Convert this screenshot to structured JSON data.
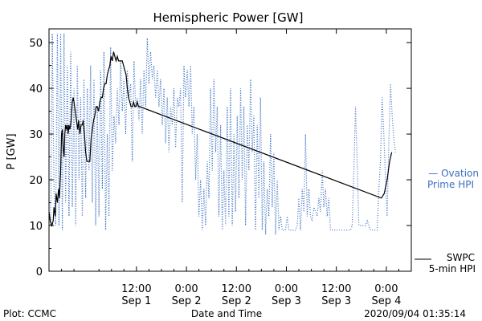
{
  "chart_data": {
    "type": "line",
    "title": "Hemispheric Power [GW]",
    "ylabel": "P [GW]",
    "xlabel": "Date and Time",
    "ylim": [
      0,
      53
    ],
    "yticks": [
      0,
      10,
      20,
      30,
      40,
      50
    ],
    "xrange_hours": [
      -9,
      78
    ],
    "xticks": [
      {
        "t": 12,
        "time": "12:00",
        "date": "Sep 1"
      },
      {
        "t": 24,
        "time": "0:00",
        "date": "Sep 2"
      },
      {
        "t": 36,
        "time": "12:00",
        "date": "Sep 2"
      },
      {
        "t": 48,
        "time": "0:00",
        "date": "Sep 3"
      },
      {
        "t": 60,
        "time": "12:00",
        "date": "Sep 3"
      },
      {
        "t": 72,
        "time": "0:00",
        "date": "Sep 4"
      }
    ],
    "footer_left": "Plot: CCMC",
    "footer_right": "2020/09/04 01:35:14",
    "series": [
      {
        "legend": [
          "— Ovation",
          "Prime HPI"
        ],
        "color": "#3a6fc0",
        "style": "dotted",
        "points": [
          [
            -9,
            13
          ],
          [
            -8.6,
            10
          ],
          [
            -8.2,
            52
          ],
          [
            -7.8,
            18
          ],
          [
            -7.4,
            10
          ],
          [
            -7,
            52
          ],
          [
            -6.6,
            10
          ],
          [
            -6.2,
            52
          ],
          [
            -5.8,
            9
          ],
          [
            -5.4,
            52
          ],
          [
            -5,
            15
          ],
          [
            -4.6,
            45
          ],
          [
            -4.2,
            12
          ],
          [
            -3.8,
            48
          ],
          [
            -3.4,
            14
          ],
          [
            -3,
            40
          ],
          [
            -2.6,
            10
          ],
          [
            -2.2,
            45
          ],
          [
            -1.8,
            20
          ],
          [
            -1.4,
            38
          ],
          [
            -1,
            12
          ],
          [
            -0.6,
            42
          ],
          [
            -0.2,
            16
          ],
          [
            0.2,
            40
          ],
          [
            0.6,
            22
          ],
          [
            1,
            45
          ],
          [
            1.4,
            15
          ],
          [
            1.8,
            42
          ],
          [
            2.2,
            10
          ],
          [
            2.6,
            36
          ],
          [
            3,
            12
          ],
          [
            3.4,
            44
          ],
          [
            3.8,
            18
          ],
          [
            4.2,
            48
          ],
          [
            4.6,
            9
          ],
          [
            5,
            30
          ],
          [
            5.4,
            12
          ],
          [
            5.8,
            49
          ],
          [
            6.2,
            22
          ],
          [
            6.6,
            34
          ],
          [
            7,
            28
          ],
          [
            7.4,
            40
          ],
          [
            7.8,
            32
          ],
          [
            8.2,
            46
          ],
          [
            8.6,
            35
          ],
          [
            9,
            42
          ],
          [
            9.4,
            30
          ],
          [
            9.8,
            44
          ],
          [
            10.2,
            38
          ],
          [
            10.6,
            41
          ],
          [
            11,
            24
          ],
          [
            11.4,
            46
          ],
          [
            11.8,
            36
          ],
          [
            12.2,
            38
          ],
          [
            12.6,
            33
          ],
          [
            13,
            42
          ],
          [
            13.4,
            30
          ],
          [
            13.8,
            44
          ],
          [
            14.2,
            36
          ],
          [
            14.6,
            51
          ],
          [
            15,
            41
          ],
          [
            15.4,
            48
          ],
          [
            15.8,
            42
          ],
          [
            16.2,
            45
          ],
          [
            16.6,
            38
          ],
          [
            17,
            44
          ],
          [
            17.4,
            36
          ],
          [
            17.8,
            42
          ],
          [
            18.2,
            32
          ],
          [
            18.6,
            40
          ],
          [
            19,
            28
          ],
          [
            19.4,
            38
          ],
          [
            19.8,
            26
          ],
          [
            20.2,
            36
          ],
          [
            20.6,
            32
          ],
          [
            21,
            40
          ],
          [
            21.4,
            27
          ],
          [
            21.8,
            38
          ],
          [
            22.2,
            36
          ],
          [
            22.6,
            40
          ],
          [
            23,
            15
          ],
          [
            23.4,
            45
          ],
          [
            23.8,
            38
          ],
          [
            24.2,
            44
          ],
          [
            24.6,
            36
          ],
          [
            25,
            45
          ],
          [
            25.4,
            30
          ],
          [
            25.8,
            36
          ],
          [
            26.2,
            20
          ],
          [
            26.6,
            30
          ],
          [
            27,
            12
          ],
          [
            27.4,
            20
          ],
          [
            27.8,
            9
          ],
          [
            28.2,
            18
          ],
          [
            28.6,
            10
          ],
          [
            29,
            24
          ],
          [
            29.4,
            16
          ],
          [
            29.8,
            40
          ],
          [
            30.2,
            22
          ],
          [
            30.6,
            42
          ],
          [
            31,
            26
          ],
          [
            31.4,
            36
          ],
          [
            31.8,
            12
          ],
          [
            32.2,
            32
          ],
          [
            32.6,
            9
          ],
          [
            33,
            22
          ],
          [
            33.4,
            10
          ],
          [
            33.8,
            36
          ],
          [
            34.2,
            12
          ],
          [
            34.6,
            40
          ],
          [
            35,
            10
          ],
          [
            35.4,
            30
          ],
          [
            35.8,
            13
          ],
          [
            36.2,
            34
          ],
          [
            36.6,
            16
          ],
          [
            37,
            40
          ],
          [
            37.4,
            20
          ],
          [
            37.8,
            36
          ],
          [
            38.2,
            10
          ],
          [
            38.6,
            32
          ],
          [
            39,
            22
          ],
          [
            39.4,
            42
          ],
          [
            39.8,
            26
          ],
          [
            40.2,
            34
          ],
          [
            40.6,
            9
          ],
          [
            41,
            32
          ],
          [
            41.4,
            16
          ],
          [
            41.8,
            38
          ],
          [
            42.2,
            9
          ],
          [
            42.6,
            24
          ],
          [
            43,
            8
          ],
          [
            43.4,
            18
          ],
          [
            43.8,
            12
          ],
          [
            44.2,
            30
          ],
          [
            44.6,
            14
          ],
          [
            45,
            26
          ],
          [
            45.4,
            8
          ],
          [
            45.8,
            20
          ],
          [
            46.2,
            9
          ],
          [
            46.6,
            12
          ],
          [
            47,
            9
          ],
          [
            47.4,
            9
          ],
          [
            47.8,
            9
          ],
          [
            48.2,
            12
          ],
          [
            48.6,
            9
          ],
          [
            49,
            9
          ],
          [
            49.4,
            9
          ],
          [
            49.8,
            9
          ],
          [
            50.2,
            9
          ],
          [
            50.6,
            10
          ],
          [
            51,
            16
          ],
          [
            51.4,
            9
          ],
          [
            51.8,
            18
          ],
          [
            52.2,
            13
          ],
          [
            52.6,
            30
          ],
          [
            53,
            12
          ],
          [
            53.4,
            18
          ],
          [
            53.8,
            12
          ],
          [
            54.2,
            11
          ],
          [
            54.6,
            14
          ],
          [
            55,
            13
          ],
          [
            55.4,
            12
          ],
          [
            55.8,
            16
          ],
          [
            56.2,
            13
          ],
          [
            56.6,
            22
          ],
          [
            57,
            14
          ],
          [
            57.4,
            18
          ],
          [
            57.8,
            12
          ],
          [
            58.2,
            16
          ],
          [
            58.6,
            9
          ],
          [
            59,
            9
          ],
          [
            59.4,
            9
          ],
          [
            59.8,
            9
          ],
          [
            60.2,
            9
          ],
          [
            60.6,
            9
          ],
          [
            61,
            9
          ],
          [
            61.4,
            9
          ],
          [
            61.8,
            9
          ],
          [
            62.2,
            9
          ],
          [
            62.6,
            9
          ],
          [
            63,
            9
          ],
          [
            63.4,
            9
          ],
          [
            63.8,
            10
          ],
          [
            64.2,
            22
          ],
          [
            64.6,
            36
          ],
          [
            65,
            24
          ],
          [
            65.4,
            10
          ],
          [
            65.8,
            10
          ],
          [
            66.2,
            10
          ],
          [
            66.6,
            10
          ],
          [
            67,
            10
          ],
          [
            67.4,
            11
          ],
          [
            67.8,
            10
          ],
          [
            68.2,
            9
          ],
          [
            68.6,
            9
          ],
          [
            69,
            9
          ],
          [
            69.4,
            9
          ],
          [
            69.8,
            9
          ],
          [
            70.2,
            18
          ],
          [
            70.6,
            24
          ],
          [
            71,
            38
          ],
          [
            71.4,
            30
          ],
          [
            71.8,
            20
          ],
          [
            72.2,
            12
          ],
          [
            72.6,
            28
          ],
          [
            73,
            41
          ],
          [
            73.4,
            34
          ],
          [
            73.8,
            29
          ],
          [
            74.2,
            26
          ]
        ]
      },
      {
        "legend": [
          "SWPC",
          "5-min HPI"
        ],
        "color": "#000000",
        "style": "solid",
        "points": [
          [
            -9,
            13
          ],
          [
            -8.7,
            11
          ],
          [
            -8.3,
            10
          ],
          [
            -8,
            11
          ],
          [
            -7.8,
            14
          ],
          [
            -7.5,
            12
          ],
          [
            -7.3,
            17
          ],
          [
            -7,
            15
          ],
          [
            -6.7,
            18
          ],
          [
            -6.5,
            16
          ],
          [
            -6.2,
            22
          ],
          [
            -6,
            30
          ],
          [
            -5.8,
            31
          ],
          [
            -5.6,
            27
          ],
          [
            -5.4,
            25
          ],
          [
            -5.2,
            30
          ],
          [
            -5,
            32
          ],
          [
            -4.8,
            31
          ],
          [
            -4.6,
            32
          ],
          [
            -4.4,
            30
          ],
          [
            -4.2,
            32
          ],
          [
            -4,
            31
          ],
          [
            -3.8,
            32
          ],
          [
            -3.6,
            34
          ],
          [
            -3.4,
            37
          ],
          [
            -3.2,
            38
          ],
          [
            -3,
            37
          ],
          [
            -2.7,
            35
          ],
          [
            -2.4,
            33
          ],
          [
            -2.1,
            31
          ],
          [
            -1.9,
            33
          ],
          [
            -1.6,
            30
          ],
          [
            -1.3,
            32
          ],
          [
            -1,
            32
          ],
          [
            -0.8,
            33
          ],
          [
            -0.5,
            30
          ],
          [
            -0.2,
            26
          ],
          [
            0.1,
            24
          ],
          [
            0.5,
            24
          ],
          [
            0.8,
            24
          ],
          [
            1.1,
            29
          ],
          [
            1.4,
            31
          ],
          [
            1.7,
            33
          ],
          [
            2,
            34
          ],
          [
            2.3,
            36
          ],
          [
            2.6,
            36
          ],
          [
            2.9,
            35
          ],
          [
            3.2,
            37
          ],
          [
            3.5,
            38
          ],
          [
            3.8,
            38
          ],
          [
            4.1,
            40
          ],
          [
            4.4,
            41
          ],
          [
            4.7,
            41
          ],
          [
            5,
            43
          ],
          [
            5.3,
            44
          ],
          [
            5.6,
            45
          ],
          [
            5.9,
            47
          ],
          [
            6.2,
            46
          ],
          [
            6.5,
            48
          ],
          [
            6.8,
            47
          ],
          [
            7.1,
            46
          ],
          [
            7.4,
            47
          ],
          [
            7.7,
            46
          ],
          [
            8,
            46
          ],
          [
            8.3,
            46
          ],
          [
            8.6,
            46
          ],
          [
            8.9,
            45
          ],
          [
            9.2,
            44
          ],
          [
            9.5,
            43
          ],
          [
            9.8,
            40
          ],
          [
            10.1,
            38
          ],
          [
            10.4,
            37
          ],
          [
            10.7,
            36
          ],
          [
            11,
            36
          ],
          [
            11.3,
            37
          ],
          [
            11.6,
            36
          ],
          [
            11.9,
            36
          ],
          [
            12.2,
            37
          ],
          [
            12.5,
            36
          ],
          [
            12.8,
            36
          ],
          [
            70.8,
            16
          ],
          [
            71.5,
            17
          ],
          [
            72.2,
            20
          ],
          [
            72.8,
            24
          ],
          [
            73.3,
            26
          ]
        ]
      }
    ]
  }
}
